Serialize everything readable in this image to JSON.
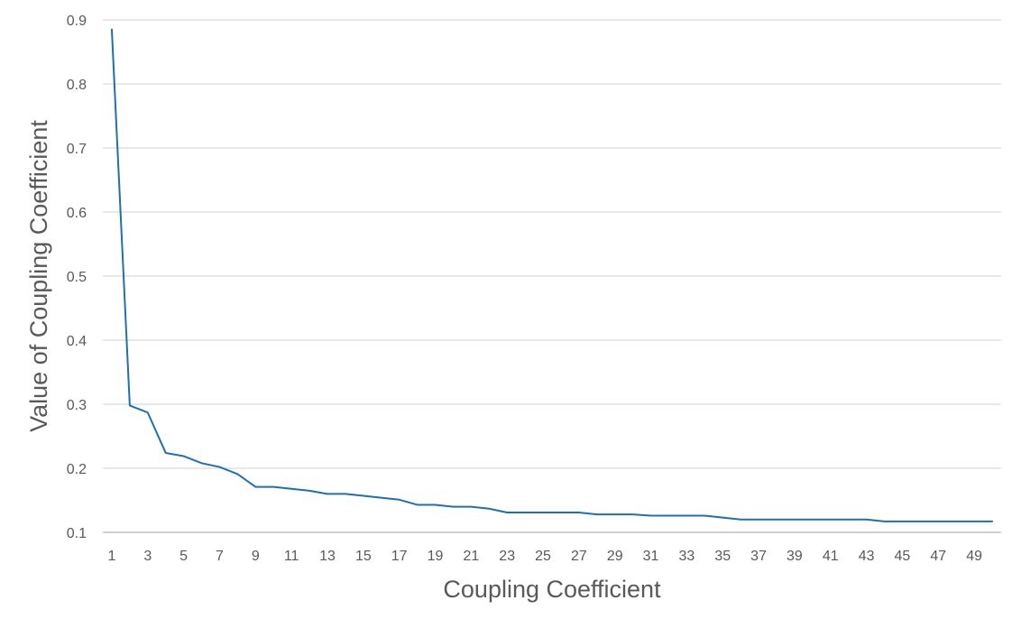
{
  "chart_data": {
    "type": "line",
    "title": "",
    "xlabel": "Coupling Coefficient",
    "ylabel": "Value of Coupling Coefficient",
    "x": [
      1,
      2,
      3,
      4,
      5,
      6,
      7,
      8,
      9,
      10,
      11,
      12,
      13,
      14,
      15,
      16,
      17,
      18,
      19,
      20,
      21,
      22,
      23,
      24,
      25,
      26,
      27,
      28,
      29,
      30,
      31,
      32,
      33,
      34,
      35,
      36,
      37,
      38,
      39,
      40,
      41,
      42,
      43,
      44,
      45,
      46,
      47,
      48,
      49,
      50
    ],
    "x_tick_labels": [
      "1",
      "3",
      "5",
      "7",
      "9",
      "11",
      "13",
      "15",
      "17",
      "19",
      "21",
      "23",
      "25",
      "27",
      "29",
      "31",
      "33",
      "35",
      "37",
      "39",
      "41",
      "43",
      "45",
      "47",
      "49"
    ],
    "y_tick_labels": [
      "0.1",
      "0.2",
      "0.3",
      "0.4",
      "0.5",
      "0.6",
      "0.7",
      "0.8",
      "0.9"
    ],
    "ylim": [
      0.1,
      0.9
    ],
    "grid": true,
    "legend": "none",
    "series": [
      {
        "values": [
          0.885,
          0.298,
          0.287,
          0.224,
          0.219,
          0.208,
          0.202,
          0.191,
          0.171,
          0.171,
          0.168,
          0.165,
          0.16,
          0.16,
          0.157,
          0.154,
          0.151,
          0.143,
          0.143,
          0.14,
          0.14,
          0.137,
          0.131,
          0.131,
          0.131,
          0.131,
          0.131,
          0.128,
          0.128,
          0.128,
          0.126,
          0.126,
          0.126,
          0.126,
          0.123,
          0.12,
          0.12,
          0.12,
          0.12,
          0.12,
          0.12,
          0.12,
          0.12,
          0.117,
          0.117,
          0.117,
          0.117,
          0.117,
          0.117,
          0.117
        ]
      }
    ],
    "colors": {
      "line": "#1f6fb2",
      "grid": "#d9d9d9",
      "axis": "#bfbfbf",
      "text": "#595959"
    }
  }
}
